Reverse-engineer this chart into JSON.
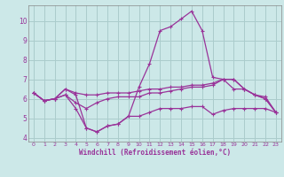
{
  "title": "",
  "xlabel": "Windchill (Refroidissement éolien,°C)",
  "background_color": "#cce8e8",
  "grid_color": "#aacccc",
  "line_color": "#993399",
  "xlim": [
    -0.5,
    23.5
  ],
  "ylim": [
    3.8,
    10.8
  ],
  "yticks": [
    4,
    5,
    6,
    7,
    8,
    9,
    10
  ],
  "xticks": [
    0,
    1,
    2,
    3,
    4,
    5,
    6,
    7,
    8,
    9,
    10,
    11,
    12,
    13,
    14,
    15,
    16,
    17,
    18,
    19,
    20,
    21,
    22,
    23
  ],
  "series": [
    {
      "x": [
        0,
        1,
        2,
        3,
        4,
        5,
        6,
        7,
        8,
        9,
        10,
        11,
        12,
        13,
        14,
        15,
        16,
        17,
        18,
        19,
        20,
        21,
        22,
        23
      ],
      "y": [
        6.3,
        5.9,
        6.0,
        6.5,
        6.3,
        6.2,
        6.2,
        6.3,
        6.3,
        6.3,
        6.4,
        6.5,
        6.5,
        6.6,
        6.6,
        6.7,
        6.7,
        6.8,
        7.0,
        7.0,
        6.5,
        6.2,
        6.1,
        5.3
      ]
    },
    {
      "x": [
        0,
        1,
        2,
        3,
        4,
        5,
        6,
        7,
        8,
        9,
        10,
        11,
        12,
        13,
        14,
        15,
        16,
        17,
        18,
        19,
        20,
        21,
        22,
        23
      ],
      "y": [
        6.3,
        5.9,
        6.0,
        6.2,
        5.5,
        4.5,
        4.3,
        4.6,
        4.7,
        5.1,
        5.1,
        5.3,
        5.5,
        5.5,
        5.5,
        5.6,
        5.6,
        5.2,
        5.4,
        5.5,
        5.5,
        5.5,
        5.5,
        5.3
      ]
    },
    {
      "x": [
        0,
        1,
        2,
        3,
        4,
        5,
        6,
        7,
        8,
        9,
        10,
        11,
        12,
        13,
        14,
        15,
        16,
        17,
        18,
        19,
        20,
        21,
        22,
        23
      ],
      "y": [
        6.3,
        5.9,
        6.0,
        6.5,
        6.2,
        4.5,
        4.3,
        4.6,
        4.7,
        5.1,
        6.6,
        7.8,
        9.5,
        9.7,
        10.1,
        10.5,
        9.5,
        7.1,
        7.0,
        6.5,
        6.5,
        6.2,
        6.0,
        5.3
      ]
    },
    {
      "x": [
        0,
        1,
        2,
        3,
        4,
        5,
        6,
        7,
        8,
        9,
        10,
        11,
        12,
        13,
        14,
        15,
        16,
        17,
        18,
        19,
        20,
        21,
        22,
        23
      ],
      "y": [
        6.3,
        5.9,
        6.0,
        6.2,
        5.8,
        5.5,
        5.8,
        6.0,
        6.1,
        6.1,
        6.1,
        6.3,
        6.3,
        6.4,
        6.5,
        6.6,
        6.6,
        6.7,
        7.0,
        7.0,
        6.5,
        6.2,
        6.0,
        5.3
      ]
    }
  ]
}
